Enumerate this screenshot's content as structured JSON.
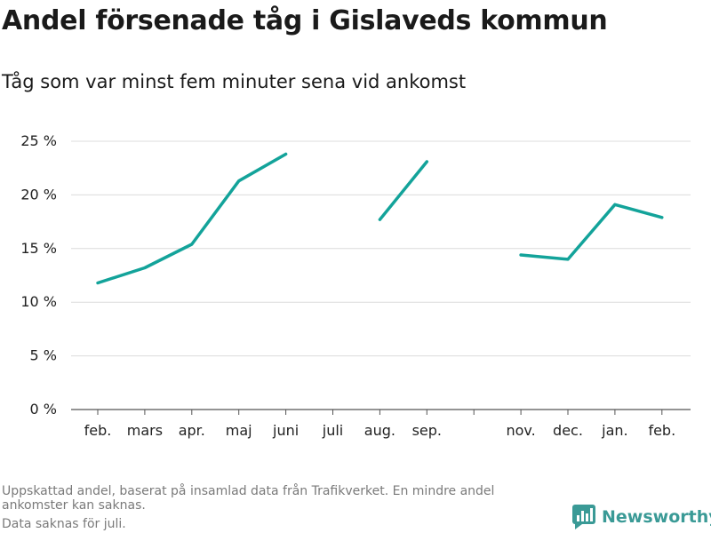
{
  "title": "Andel försenade tåg i Gislaveds kommun",
  "subtitle": "Tåg som var minst fem minuter sena vid ankomst",
  "footnote": {
    "line1": "Uppskattad andel, baserat på insamlad data från Trafikverket. En mindre andel ankomster kan saknas.",
    "line2": "Data saknas för juli."
  },
  "brand": {
    "name": "Newsworthy",
    "color": "#3a9a96",
    "icon": "bar-chart-logo-icon"
  },
  "chart_data": {
    "type": "line",
    "categories": [
      "feb.",
      "mars",
      "apr.",
      "maj",
      "juni",
      "juli",
      "aug.",
      "sep.",
      "",
      "nov.",
      "dec.",
      "jan.",
      "feb."
    ],
    "series": [
      {
        "values": [
          11.8,
          13.2,
          15.4,
          21.3,
          23.8,
          null,
          17.7,
          23.1,
          null,
          14.4,
          14.0,
          19.1,
          17.9
        ]
      }
    ],
    "yticks": [
      "0 %",
      "5 %",
      "10 %",
      "15 %",
      "20 %",
      "25 %"
    ],
    "yticks_values": [
      0,
      5,
      10,
      15,
      20,
      25
    ],
    "ylim": [
      0,
      25
    ],
    "grid": true,
    "line_color": "#13a39a"
  }
}
